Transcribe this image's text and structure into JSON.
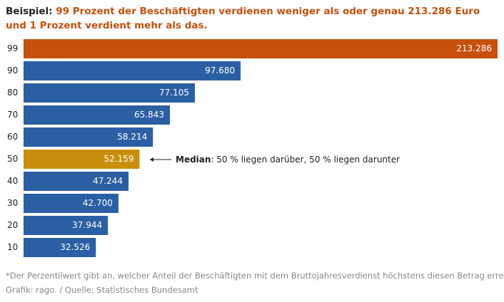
{
  "chart_data": {
    "type": "bar",
    "title_prefix": "Beispiel:",
    "title": "99 Prozent der Beschäftigten verdienen weniger als oder genau 213.286 Euro und 1 Prozent verdient mehr als das.",
    "categories": [
      "99",
      "90",
      "80",
      "70",
      "60",
      "50",
      "40",
      "30",
      "20",
      "10"
    ],
    "values": [
      213286,
      97680,
      77105,
      65843,
      58214,
      52159,
      47244,
      42700,
      37944,
      32526
    ],
    "value_labels": [
      "213.286",
      "97.680",
      "77.105",
      "65.843",
      "58.214",
      "52.159",
      "47.244",
      "42.700",
      "37.944",
      "32.526"
    ],
    "colors": [
      "#c7500c",
      "#2b5fa3",
      "#2b5fa3",
      "#2b5fa3",
      "#2b5fa3",
      "#c98f0c",
      "#2b5fa3",
      "#2b5fa3",
      "#2b5fa3",
      "#2b5fa3"
    ],
    "annotation": {
      "label": "Median",
      "text": ": 50 % liegen darüber, 50 % liegen darunter"
    },
    "footnote": "*Der Perzentilwert gibt an, welcher Anteil der Beschäftigten mit dem Bruttojahresverdienst höchstens diesen Betrag erreicht.",
    "source": "Grafik: rago. / Quelle: Statistisches Bundesamt"
  }
}
